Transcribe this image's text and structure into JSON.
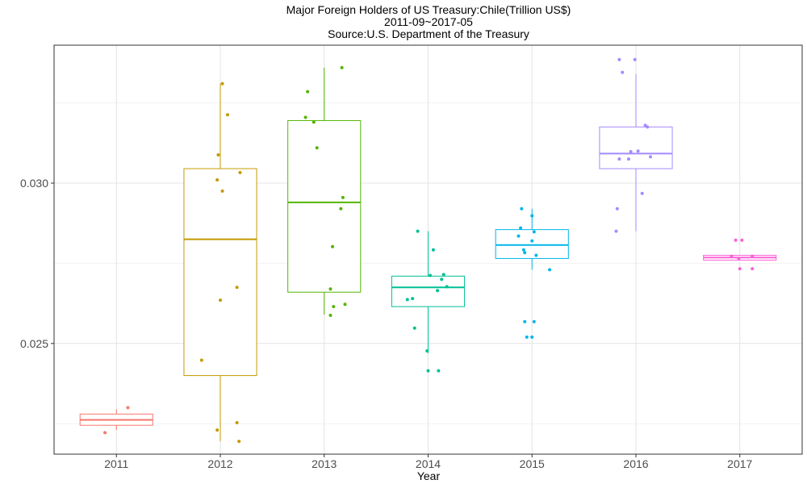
{
  "chart_data": {
    "type": "box",
    "title_lines": [
      "Major Foreign Holders of US Treasury:Chile(Trillion US$)",
      "2011-09~2017-05",
      "Source:U.S. Department of the Treasury"
    ],
    "xlabel": "Year",
    "ylabel": "",
    "ylim": [
      0.02155,
      0.0343
    ],
    "y_ticks": [
      0.025,
      0.03
    ],
    "y_tick_labels": [
      "0.025",
      "0.030"
    ],
    "grid": true,
    "legend": "none",
    "categories": [
      "2011",
      "2012",
      "2013",
      "2014",
      "2015",
      "2016",
      "2017"
    ],
    "boxes": [
      {
        "category": "2011",
        "color": "#F8766D",
        "q1": 0.02245,
        "median": 0.02262,
        "q3": 0.0228,
        "whisker_low": 0.0223,
        "whisker_high": 0.02295,
        "points": [
          {
            "dx": -0.11,
            "y": 0.02222
          },
          {
            "dx": 0.11,
            "y": 0.023
          }
        ]
      },
      {
        "category": "2012",
        "color": "#C49A00",
        "q1": 0.024,
        "median": 0.02825,
        "q3": 0.03045,
        "whisker_low": 0.02195,
        "whisker_high": 0.0331,
        "points": [
          {
            "dx": -0.18,
            "y": 0.02448
          },
          {
            "dx": -0.03,
            "y": 0.0223
          },
          {
            "dx": 0.16,
            "y": 0.02253
          },
          {
            "dx": 0.18,
            "y": 0.02195
          },
          {
            "dx": 0.0,
            "y": 0.02635
          },
          {
            "dx": 0.16,
            "y": 0.02675
          },
          {
            "dx": -0.03,
            "y": 0.0301
          },
          {
            "dx": 0.02,
            "y": 0.02975
          },
          {
            "dx": 0.19,
            "y": 0.03033
          },
          {
            "dx": -0.02,
            "y": 0.03088
          },
          {
            "dx": 0.07,
            "y": 0.03213
          },
          {
            "dx": 0.02,
            "y": 0.0331
          }
        ]
      },
      {
        "category": "2013",
        "color": "#53B400",
        "q1": 0.0266,
        "median": 0.0294,
        "q3": 0.03195,
        "whisker_low": 0.0259,
        "whisker_high": 0.0336,
        "points": [
          {
            "dx": -0.16,
            "y": 0.03285
          },
          {
            "dx": -0.18,
            "y": 0.03205
          },
          {
            "dx": -0.1,
            "y": 0.0319
          },
          {
            "dx": -0.07,
            "y": 0.0311
          },
          {
            "dx": 0.17,
            "y": 0.0336
          },
          {
            "dx": 0.18,
            "y": 0.02955
          },
          {
            "dx": 0.16,
            "y": 0.0292
          },
          {
            "dx": 0.08,
            "y": 0.02802
          },
          {
            "dx": 0.06,
            "y": 0.0267
          },
          {
            "dx": 0.09,
            "y": 0.02615
          },
          {
            "dx": 0.2,
            "y": 0.02622
          },
          {
            "dx": 0.06,
            "y": 0.02588
          }
        ]
      },
      {
        "category": "2014",
        "color": "#00C094",
        "q1": 0.02615,
        "median": 0.02675,
        "q3": 0.0271,
        "whisker_low": 0.0247,
        "whisker_high": 0.0285,
        "points": [
          {
            "dx": -0.1,
            "y": 0.0285
          },
          {
            "dx": 0.05,
            "y": 0.02792
          },
          {
            "dx": 0.02,
            "y": 0.02712
          },
          {
            "dx": 0.15,
            "y": 0.02715
          },
          {
            "dx": 0.13,
            "y": 0.027
          },
          {
            "dx": 0.09,
            "y": 0.02665
          },
          {
            "dx": 0.18,
            "y": 0.02677
          },
          {
            "dx": -0.2,
            "y": 0.02637
          },
          {
            "dx": -0.15,
            "y": 0.0264
          },
          {
            "dx": -0.13,
            "y": 0.02548
          },
          {
            "dx": -0.01,
            "y": 0.02477
          },
          {
            "dx": 0.0,
            "y": 0.02415
          },
          {
            "dx": 0.1,
            "y": 0.02415
          }
        ]
      },
      {
        "category": "2015",
        "color": "#00B6EB",
        "q1": 0.02765,
        "median": 0.02807,
        "q3": 0.02855,
        "whisker_low": 0.0273,
        "whisker_high": 0.0292,
        "points": [
          {
            "dx": -0.1,
            "y": 0.0292
          },
          {
            "dx": -0.11,
            "y": 0.0286
          },
          {
            "dx": -0.13,
            "y": 0.02835
          },
          {
            "dx": 0.0,
            "y": 0.02898
          },
          {
            "dx": 0.02,
            "y": 0.02848
          },
          {
            "dx": 0.0,
            "y": 0.0282
          },
          {
            "dx": -0.08,
            "y": 0.02792
          },
          {
            "dx": -0.07,
            "y": 0.02783
          },
          {
            "dx": 0.04,
            "y": 0.02775
          },
          {
            "dx": 0.17,
            "y": 0.0273
          },
          {
            "dx": -0.07,
            "y": 0.02568
          },
          {
            "dx": 0.02,
            "y": 0.02568
          },
          {
            "dx": -0.05,
            "y": 0.0252
          },
          {
            "dx": 0.0,
            "y": 0.0252
          }
        ]
      },
      {
        "category": "2016",
        "color": "#A58AFF",
        "q1": 0.03045,
        "median": 0.03092,
        "q3": 0.03175,
        "whisker_low": 0.0285,
        "whisker_high": 0.0334,
        "points": [
          {
            "dx": -0.16,
            "y": 0.03385
          },
          {
            "dx": -0.01,
            "y": 0.03385
          },
          {
            "dx": -0.13,
            "y": 0.03345
          },
          {
            "dx": 0.09,
            "y": 0.0318
          },
          {
            "dx": 0.11,
            "y": 0.03175
          },
          {
            "dx": -0.05,
            "y": 0.03098
          },
          {
            "dx": 0.02,
            "y": 0.031
          },
          {
            "dx": -0.16,
            "y": 0.03075
          },
          {
            "dx": -0.07,
            "y": 0.03075
          },
          {
            "dx": 0.14,
            "y": 0.03082
          },
          {
            "dx": 0.06,
            "y": 0.02968
          },
          {
            "dx": -0.18,
            "y": 0.0292
          },
          {
            "dx": -0.19,
            "y": 0.0285
          }
        ]
      },
      {
        "category": "2017",
        "color": "#FB61D7",
        "q1": 0.0276,
        "median": 0.02768,
        "q3": 0.02775,
        "whisker_low": 0.0276,
        "whisker_high": 0.02775,
        "points": [
          {
            "dx": -0.04,
            "y": 0.02822
          },
          {
            "dx": 0.02,
            "y": 0.02822
          },
          {
            "dx": -0.08,
            "y": 0.02772
          },
          {
            "dx": -0.01,
            "y": 0.02765
          },
          {
            "dx": 0.12,
            "y": 0.02772
          },
          {
            "dx": 0.0,
            "y": 0.02733
          },
          {
            "dx": 0.12,
            "y": 0.02733
          }
        ]
      }
    ]
  }
}
